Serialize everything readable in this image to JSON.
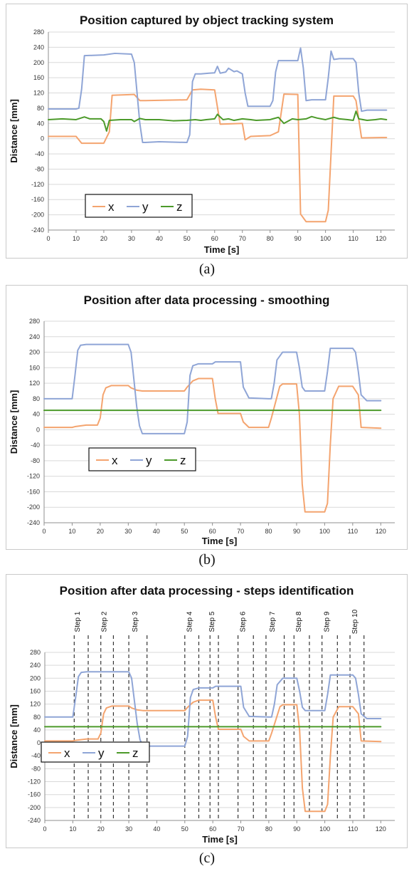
{
  "colors": {
    "x": "#F4A46F",
    "y": "#8FA5D6",
    "z": "#4C9A2A"
  },
  "chart_data": [
    {
      "type": "line",
      "title": "Position captured by object tracking system",
      "xlabel": "Time [s]",
      "ylabel": "Distance [mm]",
      "caption": "(a)",
      "xlim": [
        0,
        125
      ],
      "ylim": [
        -240,
        280
      ],
      "x_ticks": [
        0,
        10,
        20,
        30,
        40,
        50,
        60,
        70,
        80,
        90,
        100,
        110,
        120
      ],
      "x_tick_labels": [
        "0",
        "10",
        "20",
        "30",
        "40",
        "50",
        "60",
        "70",
        "80",
        "90",
        "100",
        "110",
        "120"
      ],
      "y_ticks": [
        280,
        240,
        200,
        160,
        120,
        80,
        40,
        0,
        -40,
        -80,
        -120,
        -160,
        -200,
        -240
      ],
      "y_tick_labels": [
        "280",
        "240",
        "200",
        "160",
        "120",
        "80",
        "40",
        "0",
        "-40",
        "-80",
        "-120",
        "-160",
        "-200",
        "-240"
      ],
      "grid": true,
      "legend": {
        "position": "bottom-left",
        "entries": [
          "x",
          "y",
          "z"
        ]
      },
      "series": [
        {
          "name": "x",
          "color": "#F4A46F",
          "x": [
            0,
            10,
            12,
            14,
            20,
            22,
            23,
            31,
            33,
            35,
            50,
            52,
            55,
            60,
            62,
            70,
            71,
            73,
            80,
            83,
            85,
            90,
            91,
            93,
            100,
            101,
            103,
            110,
            111,
            113,
            120,
            122
          ],
          "y": [
            6,
            6,
            -12,
            -12,
            -12,
            18,
            114,
            116,
            100,
            100,
            102,
            128,
            130,
            128,
            38,
            40,
            -3,
            6,
            8,
            18,
            117,
            116,
            -198,
            -218,
            -218,
            -188,
            112,
            112,
            100,
            2,
            3,
            3
          ]
        },
        {
          "name": "y",
          "color": "#8FA5D6",
          "x": [
            0,
            10,
            11,
            12,
            13,
            20,
            24,
            30,
            31,
            33,
            34,
            35,
            40,
            50,
            51,
            52,
            53,
            55,
            58,
            60,
            61,
            62,
            64,
            65,
            67,
            68,
            70,
            71,
            72,
            80,
            81,
            82,
            83,
            85,
            90,
            91,
            92,
            93,
            95,
            100,
            101,
            102,
            103,
            105,
            110,
            111,
            112,
            113,
            115,
            120,
            122
          ],
          "y": [
            78,
            78,
            80,
            130,
            218,
            220,
            224,
            222,
            200,
            40,
            -10,
            -10,
            -8,
            -10,
            10,
            150,
            170,
            170,
            172,
            173,
            190,
            172,
            175,
            185,
            176,
            178,
            170,
            120,
            85,
            85,
            100,
            175,
            205,
            205,
            205,
            238,
            185,
            100,
            102,
            102,
            160,
            230,
            208,
            210,
            210,
            200,
            120,
            72,
            75,
            75,
            75
          ]
        },
        {
          "name": "z",
          "color": "#4C9A2A",
          "x": [
            0,
            5,
            10,
            13,
            15,
            19,
            20,
            21,
            22,
            26,
            30,
            31,
            33,
            35,
            40,
            45,
            50,
            53,
            55,
            57,
            60,
            61,
            63,
            65,
            67,
            70,
            73,
            75,
            80,
            83,
            85,
            88,
            90,
            93,
            95,
            97,
            100,
            103,
            105,
            108,
            110,
            111,
            112,
            115,
            118,
            120,
            122
          ],
          "y": [
            50,
            52,
            50,
            57,
            52,
            52,
            45,
            20,
            48,
            50,
            50,
            45,
            53,
            50,
            50,
            47,
            48,
            50,
            48,
            50,
            52,
            64,
            50,
            52,
            48,
            52,
            50,
            48,
            50,
            56,
            40,
            52,
            50,
            52,
            58,
            54,
            50,
            56,
            52,
            50,
            48,
            72,
            52,
            48,
            50,
            52,
            50
          ]
        }
      ]
    },
    {
      "type": "line",
      "title": "Position after data processing - smoothing",
      "xlabel": "Time [s]",
      "ylabel": "Distance [mm]",
      "caption": "(b)",
      "xlim": [
        0,
        125
      ],
      "ylim": [
        -240,
        280
      ],
      "x_ticks": [
        0,
        10,
        20,
        30,
        40,
        50,
        60,
        70,
        80,
        90,
        100,
        110,
        120
      ],
      "x_tick_labels": [
        "0",
        "10",
        "20",
        "30",
        "40",
        "50",
        "60",
        "70",
        "80",
        "90",
        "100",
        "110",
        "120"
      ],
      "y_ticks": [
        280,
        240,
        200,
        160,
        120,
        80,
        40,
        0,
        -40,
        -80,
        -120,
        -160,
        -200,
        -240
      ],
      "y_tick_labels": [
        "280",
        "240",
        "200",
        "160",
        "120",
        "80",
        "40",
        "0",
        "-40",
        "-80",
        "-120",
        "-160",
        "-200",
        "-240"
      ],
      "grid": true,
      "legend": {
        "position": "bottom-left",
        "entries": [
          "x",
          "y",
          "z"
        ]
      },
      "series": [
        {
          "name": "x",
          "color": "#F4A46F",
          "x": [
            0,
            10,
            11,
            15,
            19,
            20,
            21,
            22,
            24,
            30,
            31,
            33,
            35,
            50,
            51,
            53,
            55,
            60,
            61,
            62,
            70,
            71,
            73,
            80,
            81,
            84,
            85,
            90,
            91,
            92,
            93,
            100,
            101,
            102,
            103,
            105,
            110,
            112,
            113,
            120
          ],
          "y": [
            6,
            6,
            8,
            12,
            12,
            30,
            90,
            108,
            114,
            114,
            108,
            102,
            100,
            100,
            110,
            126,
            132,
            132,
            80,
            42,
            42,
            20,
            6,
            6,
            30,
            112,
            118,
            118,
            40,
            -140,
            -212,
            -212,
            -190,
            -40,
            80,
            112,
            112,
            90,
            6,
            4
          ]
        },
        {
          "name": "y",
          "color": "#8FA5D6",
          "x": [
            0,
            10,
            11,
            12,
            13,
            15,
            20,
            30,
            31,
            33,
            34,
            35,
            50,
            51,
            52,
            53,
            55,
            60,
            61,
            70,
            71,
            73,
            80,
            81,
            82,
            83,
            85,
            90,
            91,
            92,
            93,
            100,
            101,
            102,
            103,
            110,
            111,
            112,
            113,
            115,
            120
          ],
          "y": [
            80,
            80,
            140,
            205,
            218,
            220,
            220,
            220,
            200,
            60,
            10,
            -10,
            -10,
            20,
            140,
            165,
            170,
            170,
            175,
            175,
            110,
            82,
            80,
            80,
            120,
            180,
            200,
            200,
            160,
            110,
            100,
            100,
            150,
            210,
            210,
            210,
            200,
            150,
            90,
            75,
            75
          ]
        },
        {
          "name": "z",
          "color": "#4C9A2A",
          "x": [
            0,
            120
          ],
          "y": [
            50,
            50
          ]
        }
      ]
    },
    {
      "type": "line",
      "title": "Position after data processing  - steps identification",
      "xlabel": "Time [s]",
      "ylabel": "Distance [mm]",
      "caption": "(c)",
      "xlim": [
        0,
        125
      ],
      "ylim": [
        -240,
        280
      ],
      "x_ticks": [
        0,
        10,
        20,
        30,
        40,
        50,
        60,
        70,
        80,
        90,
        100,
        110,
        120
      ],
      "x_tick_labels": [
        "0",
        "10",
        "20",
        "30",
        "40",
        "50",
        "60",
        "70",
        "80",
        "90",
        "100",
        "110",
        "120"
      ],
      "y_ticks": [
        280,
        240,
        200,
        160,
        120,
        80,
        40,
        0,
        -40,
        -80,
        -120,
        -160,
        -200,
        -240
      ],
      "y_tick_labels": [
        "280",
        "240",
        "200",
        "160",
        "120",
        "80",
        "40",
        "0",
        "-40",
        "-80",
        "-120",
        "-160",
        "-200",
        "-240"
      ],
      "grid": true,
      "legend": {
        "position": "bottom-left",
        "entries": [
          "x",
          "y",
          "z"
        ]
      },
      "step_boundaries": [
        10.5,
        15.5,
        20,
        24.5,
        30,
        36.5,
        50,
        55,
        59,
        62,
        69,
        74.5,
        79,
        85.5,
        89,
        94.5,
        99,
        104.5,
        109,
        114
      ],
      "step_labels": [
        {
          "label": "Step 1",
          "x": 12.5
        },
        {
          "label": "Step 2",
          "x": 22.0
        },
        {
          "label": "Step 3",
          "x": 33.0
        },
        {
          "label": "Step 4",
          "x": 52.5
        },
        {
          "label": "Step 5",
          "x": 60.5
        },
        {
          "label": "Step 6",
          "x": 71.5
        },
        {
          "label": "Step 7",
          "x": 82.0
        },
        {
          "label": "Step 8",
          "x": 91.5
        },
        {
          "label": "Step 9",
          "x": 101.5
        },
        {
          "label": "Step 10",
          "x": 111.5
        }
      ],
      "series": [
        {
          "name": "x",
          "color": "#F4A46F",
          "x": [
            0,
            10,
            11,
            15,
            19,
            20,
            21,
            22,
            24,
            30,
            31,
            33,
            35,
            50,
            51,
            53,
            55,
            60,
            61,
            62,
            70,
            71,
            73,
            80,
            81,
            84,
            85,
            90,
            91,
            92,
            93,
            100,
            101,
            102,
            103,
            105,
            110,
            112,
            113,
            120
          ],
          "y": [
            6,
            6,
            8,
            12,
            12,
            30,
            90,
            108,
            114,
            114,
            108,
            102,
            100,
            100,
            110,
            126,
            132,
            132,
            80,
            42,
            42,
            20,
            6,
            6,
            30,
            112,
            118,
            118,
            40,
            -140,
            -212,
            -212,
            -190,
            -40,
            80,
            112,
            112,
            90,
            6,
            4
          ]
        },
        {
          "name": "y",
          "color": "#8FA5D6",
          "x": [
            0,
            10,
            11,
            12,
            13,
            15,
            20,
            30,
            31,
            33,
            34,
            35,
            50,
            51,
            52,
            53,
            55,
            60,
            61,
            70,
            71,
            73,
            80,
            81,
            82,
            83,
            85,
            90,
            91,
            92,
            93,
            100,
            101,
            102,
            103,
            110,
            111,
            112,
            113,
            115,
            120
          ],
          "y": [
            80,
            80,
            140,
            205,
            218,
            220,
            220,
            220,
            200,
            60,
            10,
            -10,
            -10,
            20,
            140,
            165,
            170,
            170,
            175,
            175,
            110,
            82,
            80,
            80,
            120,
            180,
            200,
            200,
            160,
            110,
            100,
            100,
            150,
            210,
            210,
            210,
            200,
            150,
            90,
            75,
            75
          ]
        },
        {
          "name": "z",
          "color": "#4C9A2A",
          "x": [
            0,
            120
          ],
          "y": [
            50,
            50
          ]
        }
      ]
    }
  ]
}
